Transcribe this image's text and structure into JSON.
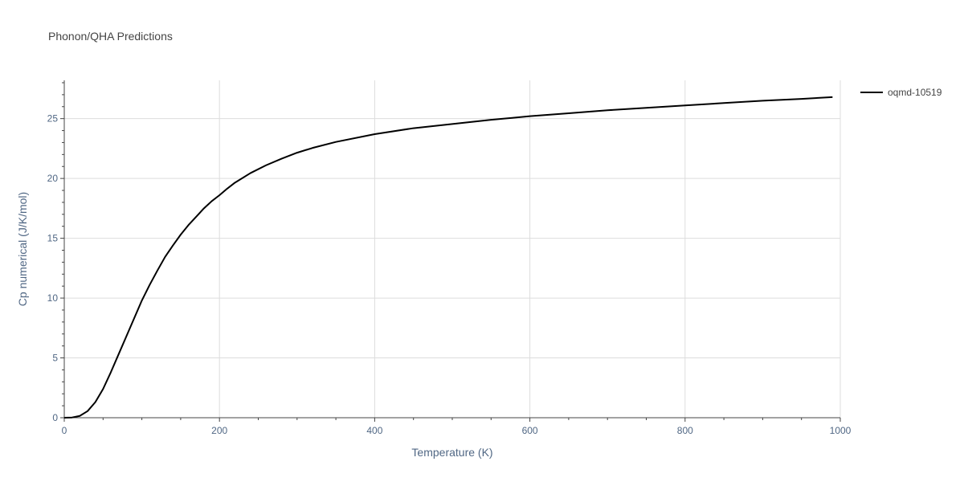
{
  "title": "Phonon/QHA Predictions",
  "chart_data": {
    "type": "line",
    "title": "Phonon/QHA Predictions",
    "xlabel": "Temperature (K)",
    "ylabel": "Cp numerical (J/K/mol)",
    "xlim": [
      0,
      1000
    ],
    "ylim": [
      0,
      28.2
    ],
    "x_ticks": [
      0,
      200,
      400,
      600,
      800,
      1000
    ],
    "y_ticks": [
      0,
      5,
      10,
      15,
      20,
      25
    ],
    "grid": true,
    "legend_position": "top-right",
    "series": [
      {
        "name": "oqmd-10519",
        "color": "#000000",
        "x": [
          0,
          10,
          20,
          30,
          40,
          50,
          60,
          70,
          80,
          90,
          100,
          110,
          120,
          130,
          140,
          150,
          160,
          170,
          180,
          190,
          200,
          210,
          220,
          240,
          260,
          280,
          300,
          320,
          350,
          400,
          450,
          500,
          550,
          600,
          650,
          700,
          750,
          800,
          850,
          900,
          950,
          990
        ],
        "y": [
          0,
          0.02,
          0.15,
          0.55,
          1.3,
          2.4,
          3.8,
          5.3,
          6.8,
          8.3,
          9.8,
          11.1,
          12.3,
          13.45,
          14.4,
          15.3,
          16.1,
          16.8,
          17.5,
          18.1,
          18.6,
          19.15,
          19.65,
          20.45,
          21.1,
          21.65,
          22.15,
          22.55,
          23.05,
          23.7,
          24.2,
          24.55,
          24.9,
          25.2,
          25.45,
          25.7,
          25.9,
          26.1,
          26.3,
          26.5,
          26.65,
          26.8
        ]
      }
    ]
  }
}
